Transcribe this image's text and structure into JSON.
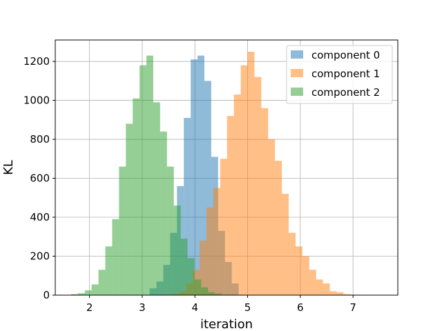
{
  "chart_data": {
    "type": "bar",
    "title": "",
    "xlabel": "iteration",
    "ylabel": "KL",
    "xlim": [
      1.35,
      7.85
    ],
    "ylim": [
      0,
      1310
    ],
    "xticks": [
      2,
      3,
      4,
      5,
      6,
      7
    ],
    "yticks": [
      0,
      200,
      400,
      600,
      800,
      1000,
      1200
    ],
    "grid": true,
    "legend_position": "top-right",
    "series": [
      {
        "name": "component 0",
        "color": "#1f77b4",
        "opacity": 0.5,
        "bin_edges": [
          3.14,
          3.27,
          3.4,
          3.53,
          3.66,
          3.79,
          3.92,
          4.05,
          4.18,
          4.31,
          4.44,
          4.57,
          4.7,
          4.83
        ],
        "counts": [
          35,
          70,
          155,
          320,
          560,
          910,
          1210,
          1230,
          1100,
          710,
          330,
          170,
          60
        ]
      },
      {
        "name": "component 1",
        "color": "#ff7f0e",
        "opacity": 0.5,
        "bin_edges": [
          3.57,
          3.7,
          3.83,
          3.96,
          4.09,
          4.22,
          4.35,
          4.48,
          4.61,
          4.74,
          4.87,
          5.0,
          5.13,
          5.26,
          5.39,
          5.52,
          5.65,
          5.78,
          5.91,
          6.04,
          6.17,
          6.3,
          6.43,
          6.56,
          6.69,
          6.82,
          6.95,
          7.08,
          7.21,
          7.34
        ],
        "counts": [
          8,
          20,
          60,
          130,
          280,
          450,
          550,
          700,
          920,
          1030,
          1180,
          1250,
          1120,
          960,
          800,
          690,
          520,
          320,
          250,
          200,
          130,
          80,
          60,
          20,
          15,
          5,
          3,
          2,
          1
        ]
      },
      {
        "name": "component 2",
        "color": "#2ca02c",
        "opacity": 0.5,
        "bin_edges": [
          1.65,
          1.78,
          1.91,
          2.04,
          2.17,
          2.3,
          2.43,
          2.56,
          2.69,
          2.82,
          2.95,
          3.08,
          3.21,
          3.34,
          3.47,
          3.6,
          3.73,
          3.86,
          3.99,
          4.12,
          4.25,
          4.38,
          4.51
        ],
        "counts": [
          5,
          10,
          25,
          55,
          130,
          250,
          390,
          660,
          880,
          1010,
          1180,
          1230,
          990,
          840,
          660,
          460,
          290,
          190,
          80,
          40,
          15,
          8,
          3
        ]
      }
    ]
  }
}
